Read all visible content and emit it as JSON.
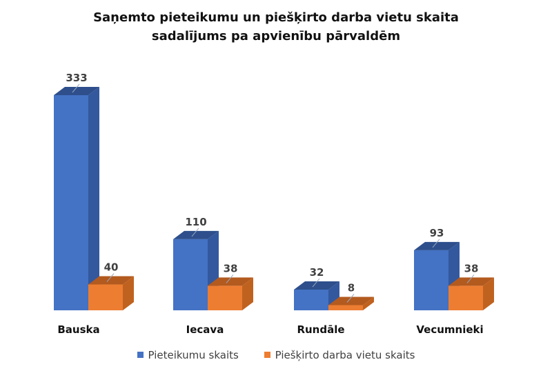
{
  "chart_data": {
    "type": "bar",
    "title_lines": [
      "Saņemto pieteikumu un piešķirto darba vietu skaita",
      "sadalījums pa apvienību pārvaldēm"
    ],
    "categories": [
      "Bauska",
      "Iecava",
      "Rundāle",
      "Vecumnieki"
    ],
    "series": [
      {
        "name": "Pieteikumu skaits",
        "values": [
          333,
          110,
          32,
          93
        ],
        "color": "#4472C4"
      },
      {
        "name": "Piešķirto darba vietu skaits",
        "values": [
          40,
          38,
          8,
          38
        ],
        "color": "#ED7D31"
      }
    ],
    "ylim": [
      0,
      333
    ],
    "grid": false,
    "legend_position": "bottom",
    "style": "3d-column"
  }
}
